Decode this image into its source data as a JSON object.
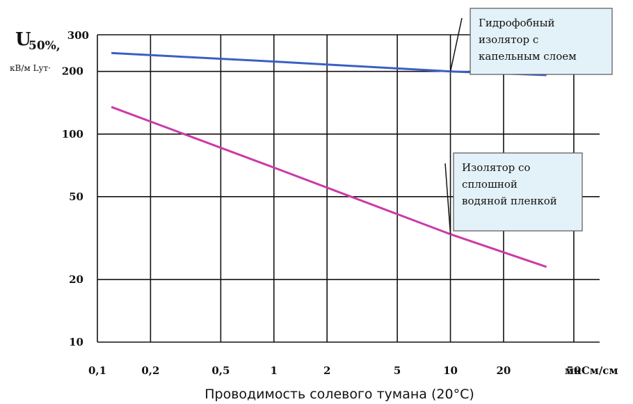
{
  "chart_data": {
    "type": "line",
    "title": "",
    "ylabel": "U50%, кВ/м Lут",
    "ylabel_main": "U",
    "ylabel_sub": "50%,",
    "ylabel_units": "кВ/м Lут·",
    "xlabel": "Проводимость солевого тумана (20°С)",
    "x_unit_label": "мкСм/см",
    "x_scale": "log",
    "y_scale": "log",
    "xlim": [
      0.1,
      70
    ],
    "ylim": [
      10,
      300
    ],
    "x_ticks": [
      {
        "value": 0.1,
        "label": "0,1"
      },
      {
        "value": 0.2,
        "label": "0,2"
      },
      {
        "value": 0.5,
        "label": "0,5"
      },
      {
        "value": 1,
        "label": "1"
      },
      {
        "value": 2,
        "label": "2"
      },
      {
        "value": 5,
        "label": "5"
      },
      {
        "value": 10,
        "label": "10"
      },
      {
        "value": 20,
        "label": "20"
      },
      {
        "value": 50,
        "label": "50"
      }
    ],
    "y_ticks": [
      {
        "value": 10,
        "label": "10"
      },
      {
        "value": 20,
        "label": "20"
      },
      {
        "value": 50,
        "label": "50"
      },
      {
        "value": 100,
        "label": "100"
      },
      {
        "value": 200,
        "label": "200"
      },
      {
        "value": 300,
        "label": "300"
      }
    ],
    "grid": true,
    "series": [
      {
        "color": "#3b5fc4",
        "x": [
          0.12,
          1,
          10,
          35
        ],
        "y": [
          245,
          223,
          200,
          192
        ]
      },
      {
        "color": "#cc3aa6",
        "x": [
          0.12,
          1,
          10,
          35
        ],
        "y": [
          135,
          69,
          33,
          23
        ]
      }
    ],
    "annotations": [
      {
        "lines": [
          "Гидрофобный",
          "изолятор с",
          "капельным слоем"
        ],
        "target": {
          "x": 10,
          "y": 200
        }
      },
      {
        "lines": [
          "Изолятор со",
          "сплошной",
          "водяной пленкой"
        ],
        "target": {
          "x": 10,
          "y": 33
        }
      }
    ],
    "colors": {
      "annotation_fill": "#e3f2f8",
      "annotation_border": "#555555"
    }
  }
}
